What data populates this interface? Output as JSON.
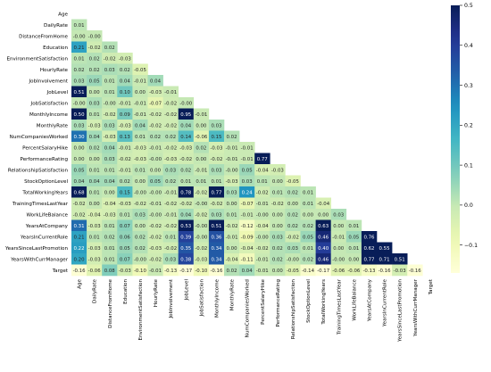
{
  "chart_data": {
    "type": "heatmap",
    "title": "",
    "xlabel": "",
    "ylabel": "",
    "labels": [
      "Age",
      "DailyRate",
      "DistanceFromHome",
      "Education",
      "EnvironmentSatisfaction",
      "HourlyRate",
      "JobInvolvement",
      "JobLevel",
      "JobSatisfaction",
      "MonthlyIncome",
      "MonthlyRate",
      "NumCompaniesWorked",
      "PercentSalaryHike",
      "PerformanceRating",
      "RelationshipSatisfaction",
      "StockOptionLevel",
      "TotalWorkingYears",
      "TrainingTimesLastYear",
      "WorkLifeBalance",
      "YearsAtCompany",
      "YearsInCurrentRole",
      "YearsSinceLastPromotion",
      "YearsWithCurrManager",
      "Target"
    ],
    "mask": "upper-triangle-and-diagonal",
    "value_format": "0.00",
    "rows": [
      [],
      [
        "0.01"
      ],
      [
        "-0.00",
        "-0.00"
      ],
      [
        "0.21",
        "-0.02",
        "0.02"
      ],
      [
        "0.01",
        "0.02",
        "-0.02",
        "-0.03"
      ],
      [
        "0.02",
        "0.02",
        "0.03",
        "0.02",
        "-0.05"
      ],
      [
        "0.03",
        "0.05",
        "0.01",
        "0.04",
        "-0.01",
        "0.04"
      ],
      [
        "0.51",
        "0.00",
        "0.01",
        "0.10",
        "0.00",
        "-0.03",
        "-0.01"
      ],
      [
        "-0.00",
        "0.03",
        "-0.00",
        "-0.01",
        "-0.01",
        "-0.07",
        "-0.02",
        "-0.00"
      ],
      [
        "0.50",
        "0.01",
        "-0.02",
        "0.09",
        "-0.01",
        "-0.02",
        "-0.02",
        "0.95",
        "-0.01"
      ],
      [
        "0.03",
        "-0.03",
        "0.03",
        "-0.03",
        "0.04",
        "-0.02",
        "-0.02",
        "0.04",
        "0.00",
        "0.03"
      ],
      [
        "0.30",
        "0.04",
        "-0.03",
        "0.13",
        "0.01",
        "0.02",
        "0.02",
        "0.14",
        "-0.06",
        "0.15",
        "0.02"
      ],
      [
        "0.00",
        "0.02",
        "0.04",
        "-0.01",
        "-0.03",
        "-0.01",
        "-0.02",
        "-0.03",
        "0.02",
        "-0.03",
        "-0.01",
        "-0.01"
      ],
      [
        "0.00",
        "0.00",
        "0.03",
        "-0.02",
        "-0.03",
        "-0.00",
        "-0.03",
        "-0.02",
        "0.00",
        "-0.02",
        "-0.01",
        "-0.01",
        "0.77"
      ],
      [
        "0.05",
        "0.01",
        "0.01",
        "-0.01",
        "0.01",
        "0.00",
        "0.03",
        "0.02",
        "-0.01",
        "0.03",
        "-0.00",
        "0.05",
        "-0.04",
        "-0.03"
      ],
      [
        "0.04",
        "0.04",
        "0.04",
        "0.02",
        "0.00",
        "0.05",
        "0.02",
        "0.01",
        "0.01",
        "0.01",
        "-0.03",
        "0.03",
        "0.01",
        "0.00",
        "-0.05"
      ],
      [
        "0.68",
        "0.01",
        "0.00",
        "0.15",
        "-0.00",
        "-0.00",
        "-0.01",
        "0.78",
        "-0.02",
        "0.77",
        "0.03",
        "0.24",
        "-0.02",
        "0.01",
        "0.02",
        "0.01"
      ],
      [
        "-0.02",
        "0.00",
        "-0.04",
        "-0.03",
        "-0.02",
        "-0.01",
        "-0.02",
        "-0.02",
        "-0.00",
        "-0.02",
        "0.00",
        "-0.07",
        "-0.01",
        "-0.02",
        "0.00",
        "0.01",
        "-0.04"
      ],
      [
        "-0.02",
        "-0.04",
        "-0.03",
        "0.01",
        "0.03",
        "-0.00",
        "-0.01",
        "0.04",
        "-0.02",
        "0.03",
        "0.01",
        "-0.01",
        "-0.00",
        "0.00",
        "0.02",
        "0.00",
        "0.00",
        "0.03"
      ],
      [
        "0.31",
        "-0.03",
        "0.01",
        "0.07",
        "0.00",
        "-0.02",
        "-0.02",
        "0.53",
        "-0.00",
        "0.51",
        "-0.02",
        "-0.12",
        "-0.04",
        "0.00",
        "0.02",
        "0.02",
        "0.63",
        "0.00",
        "0.01"
      ],
      [
        "0.21",
        "0.01",
        "0.02",
        "0.06",
        "0.02",
        "-0.02",
        "0.01",
        "0.39",
        "-0.00",
        "0.36",
        "-0.01",
        "-0.09",
        "-0.00",
        "0.03",
        "-0.02",
        "0.05",
        "0.46",
        "-0.01",
        "0.05",
        "0.76"
      ],
      [
        "0.22",
        "-0.03",
        "0.01",
        "0.05",
        "0.02",
        "-0.03",
        "-0.02",
        "0.35",
        "-0.02",
        "0.34",
        "0.00",
        "-0.04",
        "-0.02",
        "0.02",
        "0.03",
        "0.01",
        "0.40",
        "0.00",
        "0.01",
        "0.62",
        "0.55"
      ],
      [
        "0.20",
        "-0.03",
        "0.01",
        "0.07",
        "-0.00",
        "-0.02",
        "0.03",
        "0.38",
        "-0.03",
        "0.34",
        "-0.04",
        "-0.11",
        "-0.01",
        "0.02",
        "-0.00",
        "0.02",
        "0.46",
        "-0.00",
        "0.00",
        "0.77",
        "0.71",
        "0.51"
      ],
      [
        "-0.16",
        "-0.06",
        "0.08",
        "-0.03",
        "-0.10",
        "-0.01",
        "-0.13",
        "-0.17",
        "-0.10",
        "-0.16",
        "0.02",
        "0.04",
        "-0.01",
        "0.00",
        "-0.05",
        "-0.14",
        "-0.17",
        "-0.06",
        "-0.06",
        "-0.13",
        "-0.16",
        "-0.03",
        "-0.16"
      ]
    ],
    "color_scale": {
      "name": "YlGnBu",
      "vmin": -0.17,
      "vmax": 0.5,
      "ticks": [
        "−0.1",
        "0.0",
        "0.1",
        "0.2",
        "0.3",
        "0.4",
        "0.5"
      ]
    }
  }
}
